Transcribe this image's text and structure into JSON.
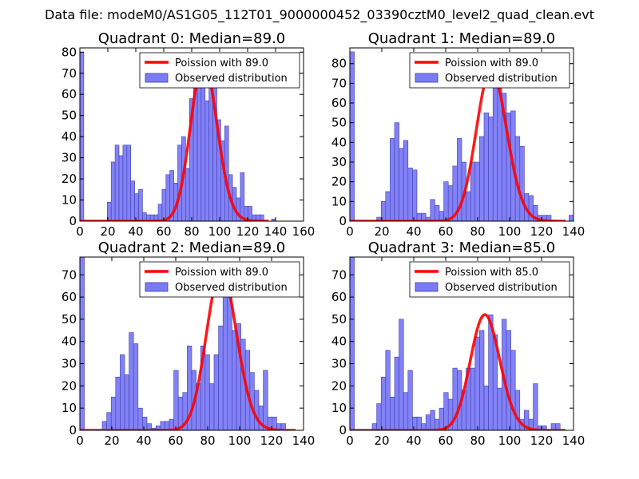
{
  "suptitle": "Data file: modeM0/AS1G05_112T01_9000000452_03390cztM0_level2_quad_clean.evt",
  "colors": {
    "bar_fill": "#7b7bf5",
    "bar_edge": "#3f3fb0",
    "poisson_line": "#ff0000",
    "axes": "#000000"
  },
  "legend_labels": {
    "observed": "Observed distribution"
  },
  "chart_data": [
    {
      "type": "bar",
      "title": "Quadrant 0: Median=89.0",
      "poisson_label": "Poission with 89.0",
      "mean": 89.0,
      "xlim": [
        0,
        160
      ],
      "ylim": [
        0,
        82
      ],
      "xticks": [
        0,
        20,
        40,
        60,
        80,
        100,
        120,
        140,
        160
      ],
      "yticks": [
        0,
        10,
        20,
        30,
        40,
        50,
        60,
        70,
        80
      ],
      "bin_width": 2.8,
      "bin_starts": [
        0,
        19.6,
        22.4,
        25.2,
        28,
        30.8,
        33.6,
        36.4,
        39.2,
        42,
        44.8,
        47.6,
        50.4,
        53.2,
        56,
        58.8,
        61.6,
        64.4,
        67.2,
        70,
        72.8,
        75.6,
        78.4,
        81.2,
        84,
        86.8,
        89.6,
        92.4,
        95.2,
        98,
        100.8,
        103.6,
        106.4,
        109.2,
        112,
        114.8,
        117.6,
        120.4,
        123.2,
        126,
        128.8,
        131.6,
        134.4,
        137.2
      ],
      "counts": [
        80,
        9,
        28,
        36,
        31,
        36,
        36,
        19,
        13,
        15,
        4,
        3,
        3,
        3,
        8,
        15,
        22,
        24,
        18,
        36,
        40,
        25,
        58,
        69,
        76,
        76,
        57,
        77,
        67,
        48,
        38,
        45,
        22,
        16,
        11,
        23,
        7,
        7,
        3,
        3,
        3,
        0,
        0,
        1
      ]
    },
    {
      "type": "bar",
      "title": "Quadrant 1: Median=89.0",
      "poisson_label": "Poission with 89.0",
      "mean": 89.0,
      "xlim": [
        0,
        140
      ],
      "ylim": [
        0,
        88
      ],
      "xticks": [
        0,
        20,
        40,
        60,
        80,
        100,
        120,
        140
      ],
      "yticks": [
        0,
        10,
        20,
        30,
        40,
        50,
        60,
        70,
        80
      ],
      "bin_width": 2.8,
      "bin_starts": [
        0,
        16.8,
        19.6,
        22.4,
        25.2,
        28,
        30.8,
        33.6,
        36.4,
        39.2,
        42,
        44.8,
        47.6,
        50.4,
        53.2,
        56,
        58.8,
        61.6,
        64.4,
        67.2,
        70,
        72.8,
        75.6,
        78.4,
        81.2,
        84,
        86.8,
        89.6,
        92.4,
        95.2,
        98,
        100.8,
        103.6,
        106.4,
        109.2,
        112,
        114.8,
        117.6,
        120.4,
        123.2,
        126,
        128.8,
        131.6,
        134.4,
        137.2
      ],
      "counts": [
        86,
        2,
        10,
        15,
        42,
        50,
        37,
        41,
        27,
        26,
        4,
        4,
        2,
        11,
        8,
        5,
        20,
        18,
        28,
        42,
        30,
        15,
        30,
        30,
        43,
        55,
        53,
        77,
        74,
        65,
        55,
        56,
        43,
        38,
        14,
        13,
        8,
        3,
        3,
        3,
        0,
        0,
        0,
        0,
        3
      ]
    },
    {
      "type": "bar",
      "title": "Quadrant 2: Median=89.0",
      "poisson_label": "Poission with 89.0",
      "mean": 89.0,
      "xlim": [
        0,
        140
      ],
      "ylim": [
        0,
        78
      ],
      "xticks": [
        0,
        20,
        40,
        60,
        80,
        100,
        120,
        140
      ],
      "yticks": [
        0,
        10,
        20,
        30,
        40,
        50,
        60,
        70
      ],
      "bin_width": 2.8,
      "bin_starts": [
        0,
        14,
        16.8,
        19.6,
        22.4,
        25.2,
        28,
        30.8,
        33.6,
        36.4,
        39.2,
        42,
        44.8,
        47.6,
        50.4,
        53.2,
        56,
        58.8,
        61.6,
        64.4,
        67.2,
        70,
        72.8,
        75.6,
        78.4,
        81.2,
        84,
        86.8,
        89.6,
        92.4,
        95.2,
        98,
        100.8,
        103.6,
        106.4,
        109.2,
        112,
        114.8,
        117.6,
        120.4,
        123.2,
        126
      ],
      "counts": [
        78,
        4,
        8,
        15,
        24,
        34,
        25,
        44,
        39,
        10,
        6,
        3,
        1,
        2,
        4,
        4,
        5,
        27,
        15,
        17,
        38,
        27,
        21,
        38,
        34,
        21,
        34,
        47,
        72,
        64,
        45,
        48,
        41,
        36,
        26,
        18,
        11,
        27,
        6,
        6,
        3,
        3
      ]
    },
    {
      "type": "bar",
      "title": "Quadrant 3: Median=85.0",
      "poisson_label": "Poission with 85.0",
      "mean": 85.0,
      "xlim": [
        0,
        140
      ],
      "ylim": [
        0,
        78
      ],
      "xticks": [
        0,
        20,
        40,
        60,
        80,
        100,
        120,
        140
      ],
      "yticks": [
        0,
        10,
        20,
        30,
        40,
        50,
        60,
        70
      ],
      "bin_width": 2.8,
      "bin_starts": [
        0,
        14,
        16.8,
        19.6,
        22.4,
        25.2,
        28,
        30.8,
        33.6,
        36.4,
        39.2,
        42,
        44.8,
        47.6,
        50.4,
        53.2,
        56,
        58.8,
        61.6,
        64.4,
        67.2,
        70,
        72.8,
        75.6,
        78.4,
        81.2,
        84,
        86.8,
        89.6,
        92.4,
        95.2,
        98,
        100.8,
        103.6,
        106.4,
        109.2,
        112,
        114.8,
        117.6,
        120.4,
        123.2,
        126,
        128.8
      ],
      "counts": [
        78,
        3,
        12,
        24,
        36,
        15,
        33,
        50,
        17,
        27,
        6,
        6,
        3,
        7,
        9,
        5,
        10,
        17,
        14,
        28,
        27,
        18,
        28,
        28,
        42,
        45,
        20,
        52,
        43,
        19,
        50,
        45,
        36,
        18,
        5,
        9,
        5,
        21,
        2,
        2,
        0,
        3,
        3,
        1
      ]
    }
  ]
}
